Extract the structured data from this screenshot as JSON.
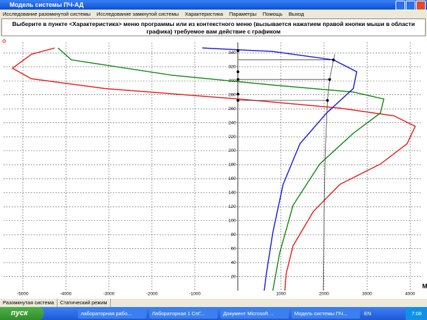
{
  "window": {
    "title": "Модель системы ПЧ-АД",
    "menu": [
      "Исследование разомкнутой системы",
      "Исследование замкнутой системы",
      "Характеристика",
      "Параметры",
      "Помощь",
      "Выход"
    ],
    "instruction": "Выберите в пункте <Характеристика> меню программы или из контекстного меню (вызывается нажатием правой кнопки мыши в области графика) требуемое вам действие с графиком",
    "status": [
      "Разомкнутая система",
      "Статический режим"
    ]
  },
  "taskbar": {
    "start": "пуск",
    "tasks": [
      "лабораторная рабо...",
      "Лабораторная 1 СпГ...",
      "Документ Microsoft ...",
      "Модель системы ПЧ..."
    ],
    "lang": "EN",
    "clock": "7:08"
  },
  "chart_data": {
    "type": "line",
    "x_label": "M",
    "xlim": [
      -5450,
      4250
    ],
    "ylim": [
      0,
      355
    ],
    "xticks": [
      -5000,
      -4000,
      -3000,
      -2000,
      -1000,
      1000,
      2000,
      3000,
      4000
    ],
    "yticks": [
      20,
      40,
      60,
      80,
      100,
      120,
      140,
      160,
      180,
      200,
      220,
      240,
      260,
      280,
      300,
      320,
      340
    ],
    "grid": true,
    "series": [
      {
        "color": "#e8201c",
        "x": [
          -4260,
          -4800,
          -5240,
          -4800,
          -3090,
          30,
          2370,
          3620,
          4120,
          3930,
          3310,
          2370,
          1750,
          1280,
          1120,
          1090
        ],
        "values": [
          347,
          338,
          318,
          303,
          289,
          274,
          261,
          250,
          235,
          210,
          181,
          152,
          113,
          64,
          24,
          0
        ]
      },
      {
        "color": "#168a16",
        "x": [
          -4180,
          -3870,
          -1530,
          810,
          2680,
          3390,
          3310,
          2680,
          1900,
          1280,
          970,
          810
        ],
        "values": [
          347,
          330,
          308,
          294,
          284,
          274,
          254,
          225,
          181,
          122,
          54,
          0
        ]
      },
      {
        "color": "#1c1ce0",
        "x": [
          -830,
          810,
          2220,
          2760,
          2680,
          2060,
          1440,
          1050,
          810,
          660,
          610
        ],
        "values": [
          347,
          342,
          330,
          313,
          289,
          254,
          210,
          152,
          83,
          24,
          0
        ]
      },
      {
        "color": "#404040",
        "x": [
          2250,
          2220,
          2130,
          2080,
          2030,
          2000,
          1980
        ],
        "values": [
          338,
          330,
          302,
          272,
          200,
          100,
          0
        ]
      },
      {
        "color": "#404040",
        "x": [
          0,
          2220
        ],
        "values": [
          330,
          330
        ]
      },
      {
        "color": "#404040",
        "x": [
          0,
          2130
        ],
        "values": [
          302,
          302
        ]
      },
      {
        "color": "#404040",
        "x": [
          0,
          2080
        ],
        "values": [
          272,
          272
        ]
      }
    ],
    "points": {
      "color": "#000000",
      "x": [
        0,
        0,
        0,
        0,
        0,
        2220,
        2130,
        2080
      ],
      "values": [
        343,
        313,
        302,
        281,
        272,
        330,
        302,
        272
      ]
    }
  }
}
